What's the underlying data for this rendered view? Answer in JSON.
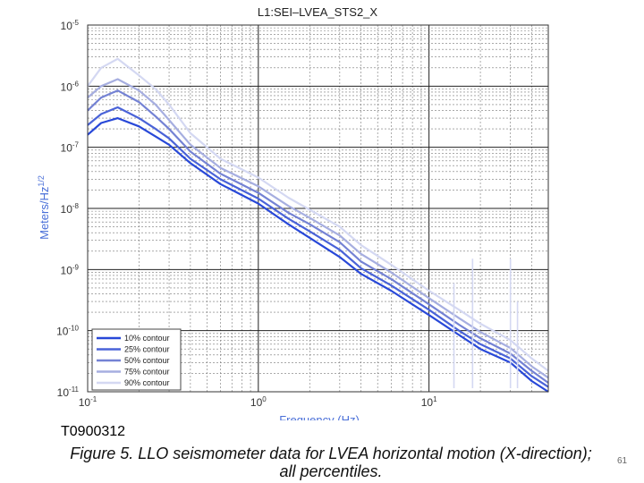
{
  "chart_data": {
    "type": "line",
    "title": "L1:SEI–LVEA_STS2_X",
    "xlabel": "Frequency (Hz)",
    "ylabel": "Meters/Hz",
    "ylabel_sup": "1/2",
    "xscale": "log",
    "yscale": "log",
    "xlim": [
      0.1,
      50
    ],
    "ylim": [
      1e-11,
      1e-05
    ],
    "grid": true,
    "legend_position": "bottom-left",
    "x_ticks": [
      {
        "value": 0.1,
        "base": "10",
        "exp": "-1"
      },
      {
        "value": 1,
        "base": "10",
        "exp": "0"
      },
      {
        "value": 10,
        "base": "10",
        "exp": "1"
      }
    ],
    "y_ticks": [
      {
        "value": 1e-05,
        "base": "10",
        "exp": "-5"
      },
      {
        "value": 1e-06,
        "base": "10",
        "exp": "-6"
      },
      {
        "value": 1e-07,
        "base": "10",
        "exp": "-7"
      },
      {
        "value": 1e-08,
        "base": "10",
        "exp": "-8"
      },
      {
        "value": 1e-09,
        "base": "10",
        "exp": "-9"
      },
      {
        "value": 1e-10,
        "base": "10",
        "exp": "-10"
      },
      {
        "value": 1e-11,
        "base": "10",
        "exp": "-11"
      }
    ],
    "series": [
      {
        "name": "10% contour",
        "color": "#2848d8",
        "x": [
          0.1,
          0.12,
          0.15,
          0.2,
          0.25,
          0.3,
          0.4,
          0.6,
          1,
          1.5,
          2,
          3,
          4,
          6,
          10,
          15,
          20,
          30,
          40,
          50
        ],
        "y": [
          1.6e-07,
          2.5e-07,
          3e-07,
          2.2e-07,
          1.5e-07,
          1.1e-07,
          5.5e-08,
          2.5e-08,
          1.2e-08,
          5.5e-09,
          3.3e-09,
          1.6e-09,
          8.5e-10,
          4.5e-10,
          1.8e-10,
          8.5e-11,
          5e-11,
          3e-11,
          1.5e-11,
          1e-11
        ]
      },
      {
        "name": "25% contour",
        "color": "#4a63d8",
        "x": [
          0.1,
          0.12,
          0.15,
          0.2,
          0.25,
          0.3,
          0.4,
          0.6,
          1,
          1.5,
          2,
          3,
          4,
          6,
          10,
          15,
          20,
          30,
          40,
          50
        ],
        "y": [
          2.3e-07,
          3.5e-07,
          4.5e-07,
          3e-07,
          2e-07,
          1.4e-07,
          6.5e-08,
          3e-08,
          1.45e-08,
          6.8e-09,
          4.2e-09,
          2.1e-09,
          1.05e-09,
          5.5e-10,
          2.2e-10,
          1e-10,
          6e-11,
          3.5e-11,
          1.8e-11,
          1.2e-11
        ]
      },
      {
        "name": "50% contour",
        "color": "#7482d4",
        "x": [
          0.1,
          0.12,
          0.15,
          0.2,
          0.25,
          0.3,
          0.4,
          0.6,
          1,
          1.5,
          2,
          3,
          4,
          6,
          10,
          15,
          20,
          30,
          40,
          50
        ],
        "y": [
          4e-07,
          6.5e-07,
          8.5e-07,
          5.5e-07,
          3.2e-07,
          2e-07,
          8.5e-08,
          3.7e-08,
          1.8e-08,
          8.5e-09,
          5.5e-09,
          2.8e-09,
          1.35e-09,
          7e-10,
          2.7e-10,
          1.25e-10,
          7.5e-11,
          4.2e-11,
          2.2e-11,
          1.4e-11
        ]
      },
      {
        "name": "75% contour",
        "color": "#a6aee0",
        "x": [
          0.1,
          0.12,
          0.15,
          0.2,
          0.25,
          0.3,
          0.4,
          0.6,
          1,
          1.5,
          2,
          3,
          4,
          6,
          10,
          15,
          20,
          30,
          40,
          50
        ],
        "y": [
          6.5e-07,
          1e-06,
          1.3e-06,
          8.5e-07,
          5e-07,
          2.8e-07,
          1.1e-07,
          4.6e-08,
          2.3e-08,
          1.1e-08,
          7e-09,
          3.6e-09,
          1.8e-09,
          9e-10,
          3.4e-10,
          1.6e-10,
          9.5e-11,
          5.2e-11,
          2.6e-11,
          1.7e-11
        ]
      },
      {
        "name": "90% contour",
        "color": "#d4d8f2",
        "x": [
          0.1,
          0.12,
          0.15,
          0.2,
          0.25,
          0.3,
          0.4,
          0.6,
          1,
          1.5,
          2,
          3,
          4,
          6,
          10,
          15,
          20,
          30,
          40,
          50
        ],
        "y": [
          1e-06,
          2e-06,
          2.8e-06,
          1.5e-06,
          9e-07,
          5e-07,
          1.7e-07,
          6.5e-08,
          3.2e-08,
          1.5e-08,
          9.5e-09,
          5e-09,
          2.5e-09,
          1.2e-09,
          4.5e-10,
          2.2e-10,
          1.3e-10,
          7e-11,
          3.5e-11,
          2.2e-11
        ]
      }
    ],
    "spikes": [
      {
        "x": 18,
        "y": 1.5e-09,
        "color": "#d4d8f2"
      },
      {
        "x": 30,
        "y": 1.5e-09,
        "color": "#d4d8f2"
      },
      {
        "x": 14,
        "y": 6e-10,
        "color": "#d4d8f2"
      },
      {
        "x": 33,
        "y": 3e-10,
        "color": "#d4d8f2"
      }
    ]
  },
  "doc_id": "T0900312",
  "caption_line1": "Figure 5. LLO seismometer data for LVEA horizontal motion (X-direction);",
  "caption_line2": "all percentiles.",
  "page_number": "61"
}
